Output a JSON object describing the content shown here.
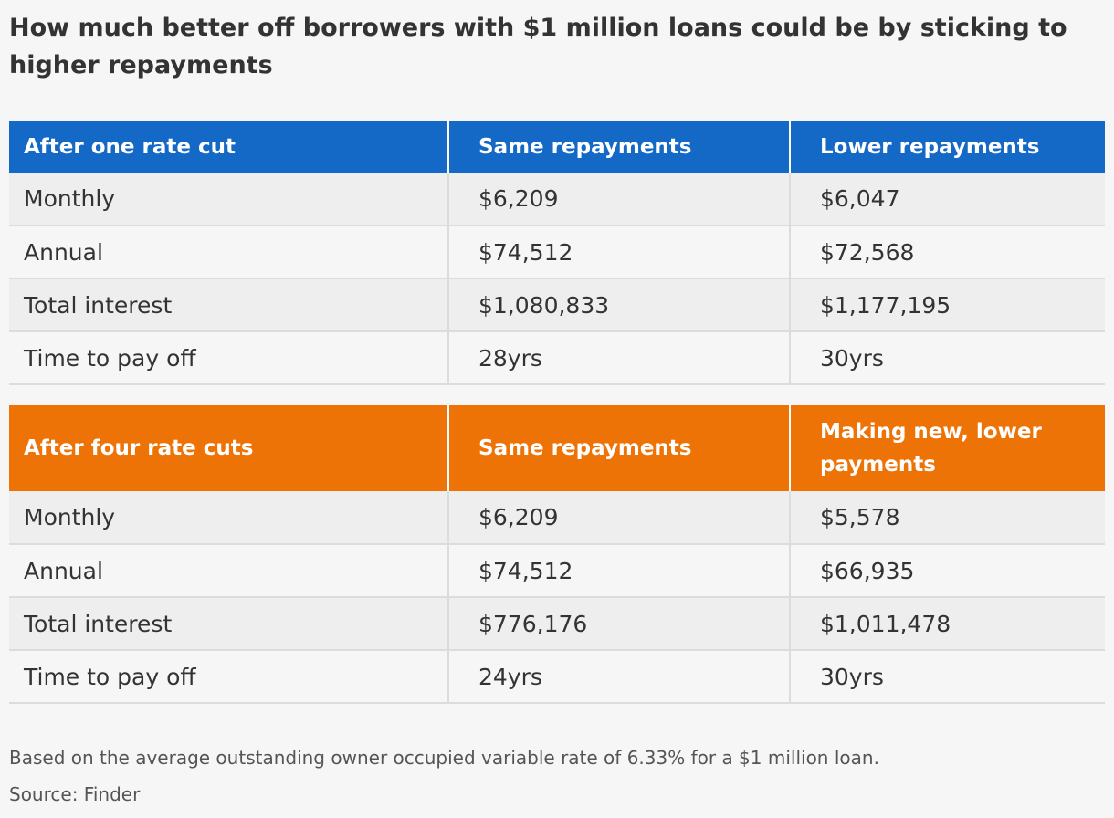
{
  "title": "How much better off borrowers with $1 million loans could be by sticking to higher repayments",
  "colors": {
    "table1_header": "#1469c7",
    "table2_header": "#ee7307",
    "row_shade": "#eeeeee",
    "background": "#f6f6f6"
  },
  "tables": [
    {
      "headers": [
        "After one rate cut",
        "Same repayments",
        "Lower repayments"
      ],
      "rows": [
        [
          "Monthly",
          "$6,209",
          "$6,047"
        ],
        [
          "Annual",
          "$74,512",
          "$72,568"
        ],
        [
          "Total interest",
          "$1,080,833",
          "$1,177,195"
        ],
        [
          "Time to pay off",
          "28yrs",
          "30yrs"
        ]
      ]
    },
    {
      "headers": [
        "After four rate cuts",
        "Same repayments",
        "Making new, lower payments"
      ],
      "rows": [
        [
          "Monthly",
          "$6,209",
          "$5,578"
        ],
        [
          "Annual",
          "$74,512",
          "$66,935"
        ],
        [
          "Total interest",
          "$776,176",
          "$1,011,478"
        ],
        [
          "Time to pay off",
          "24yrs",
          "30yrs"
        ]
      ]
    }
  ],
  "note": "Based on the average outstanding owner occupied variable rate of 6.33% for a $1 million loan.",
  "source": "Source: Finder"
}
